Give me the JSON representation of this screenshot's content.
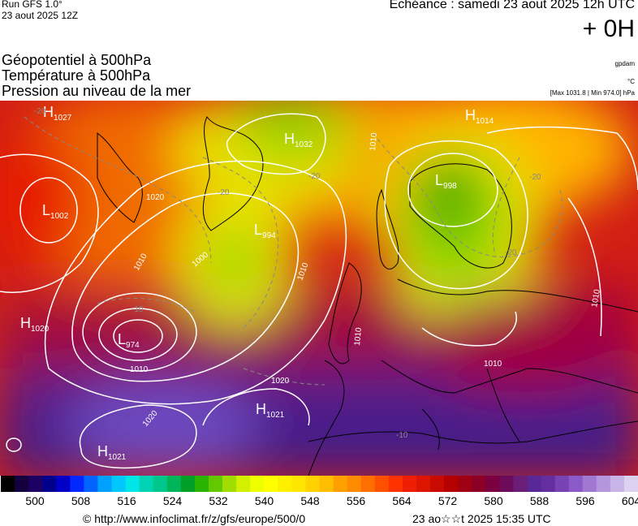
{
  "header": {
    "run": "Run GFS 1.0°",
    "run_date": "23 aout 2025 12Z",
    "echeance": "Echéance : samedi 23 aout 2025 12h UTC",
    "lead": "+ 0H"
  },
  "titles": {
    "line1": "Géopotentiel à 500hPa",
    "line2": "Température à 500hPa",
    "line3": "Pression au niveau de la mer"
  },
  "units": {
    "geopotential": "gpdam",
    "temperature": "°C",
    "pressure": "[Max 1031.8 | Min 974.0] hPa"
  },
  "map": {
    "centers": [
      {
        "type": "H",
        "value": "1027"
      },
      {
        "type": "L",
        "value": "1002"
      },
      {
        "type": "H",
        "value": "1032"
      },
      {
        "type": "L",
        "value": "994"
      },
      {
        "type": "L",
        "value": "974"
      },
      {
        "type": "H",
        "value": "1020"
      },
      {
        "type": "H",
        "value": "1021"
      },
      {
        "type": "H",
        "value": "1021"
      },
      {
        "type": "L",
        "value": "998"
      },
      {
        "type": "H",
        "value": "1014"
      }
    ],
    "isobar_labels": [
      "1010",
      "1010",
      "1020",
      "1000",
      "1010",
      "1010",
      "1020",
      "1020",
      "1010",
      "1010",
      "1010"
    ],
    "temp_labels": [
      "-20",
      "-10",
      "-20",
      "-20",
      "-10",
      "-20",
      "-20"
    ]
  },
  "colorbar": {
    "ticks": [
      "500",
      "508",
      "516",
      "524",
      "532",
      "540",
      "548",
      "556",
      "564",
      "572",
      "580",
      "588",
      "596",
      "604"
    ],
    "colors": [
      "#000000",
      "#14003c",
      "#1e0064",
      "#00008c",
      "#0000c8",
      "#0028ff",
      "#0064ff",
      "#00a0ff",
      "#00c8ff",
      "#00e6e6",
      "#00d2b4",
      "#00c88c",
      "#00b45a",
      "#00a028",
      "#28b400",
      "#64c800",
      "#a0dc00",
      "#d2f000",
      "#f0ff00",
      "#ffff00",
      "#fff000",
      "#ffe600",
      "#ffd200",
      "#ffbe00",
      "#ffa000",
      "#ff8c00",
      "#ff6e00",
      "#ff5000",
      "#ff3200",
      "#f01e00",
      "#dc1400",
      "#c80a00",
      "#b40000",
      "#a00014",
      "#8c0028",
      "#7a0040",
      "#6e0a5a",
      "#6a1e78",
      "#5a2896",
      "#642da0",
      "#7841b4",
      "#8c5ac8",
      "#a078d2",
      "#b496dc",
      "#c8b4e6",
      "#dcd2f0"
    ]
  },
  "footer": {
    "copyright": "© http://www.infoclimat.fr/z/gfs/europe/500/0",
    "updated": "23 ao☆☆t 2025 15:35 UTC"
  }
}
